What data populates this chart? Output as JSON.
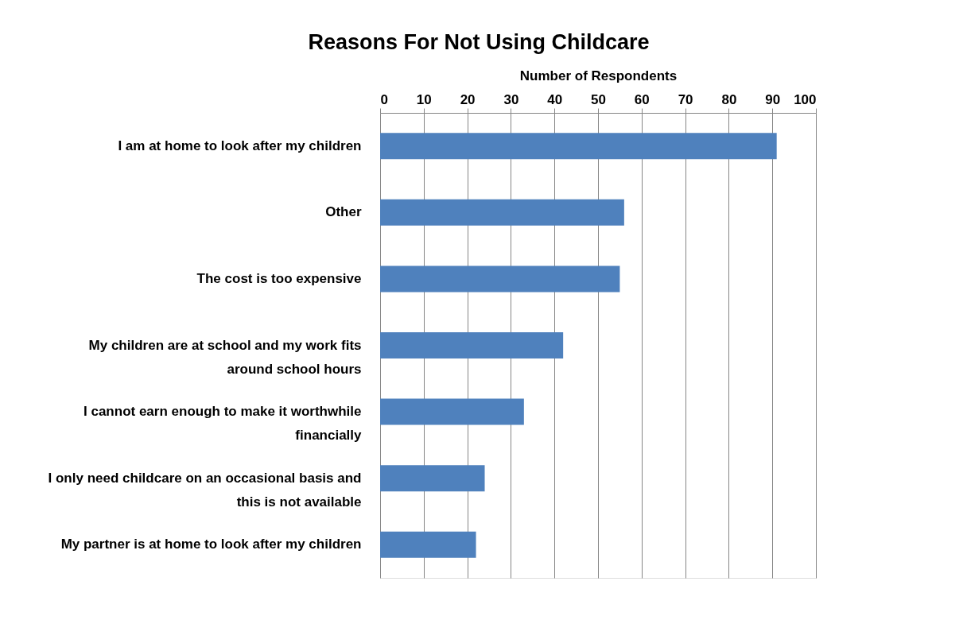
{
  "chart_data": {
    "type": "bar",
    "orientation": "horizontal",
    "title": "Reasons For Not Using Childcare",
    "xlabel": "Number of Respondents",
    "categories": [
      "I am at home to look after my children",
      "Other",
      "The cost is too expensive",
      "My children are at school and my work fits around school hours",
      "I cannot earn enough to make it worthwhile financially",
      "I only need childcare on an occasional basis and this is not available",
      "My partner is at home to look after my children"
    ],
    "values": [
      91,
      56,
      55,
      42,
      33,
      24,
      22
    ],
    "color": "#4f81bd",
    "xlim": [
      0,
      100
    ],
    "xticks": [
      0,
      10,
      20,
      30,
      40,
      50,
      60,
      70,
      80,
      90,
      100
    ],
    "grid": "x"
  }
}
